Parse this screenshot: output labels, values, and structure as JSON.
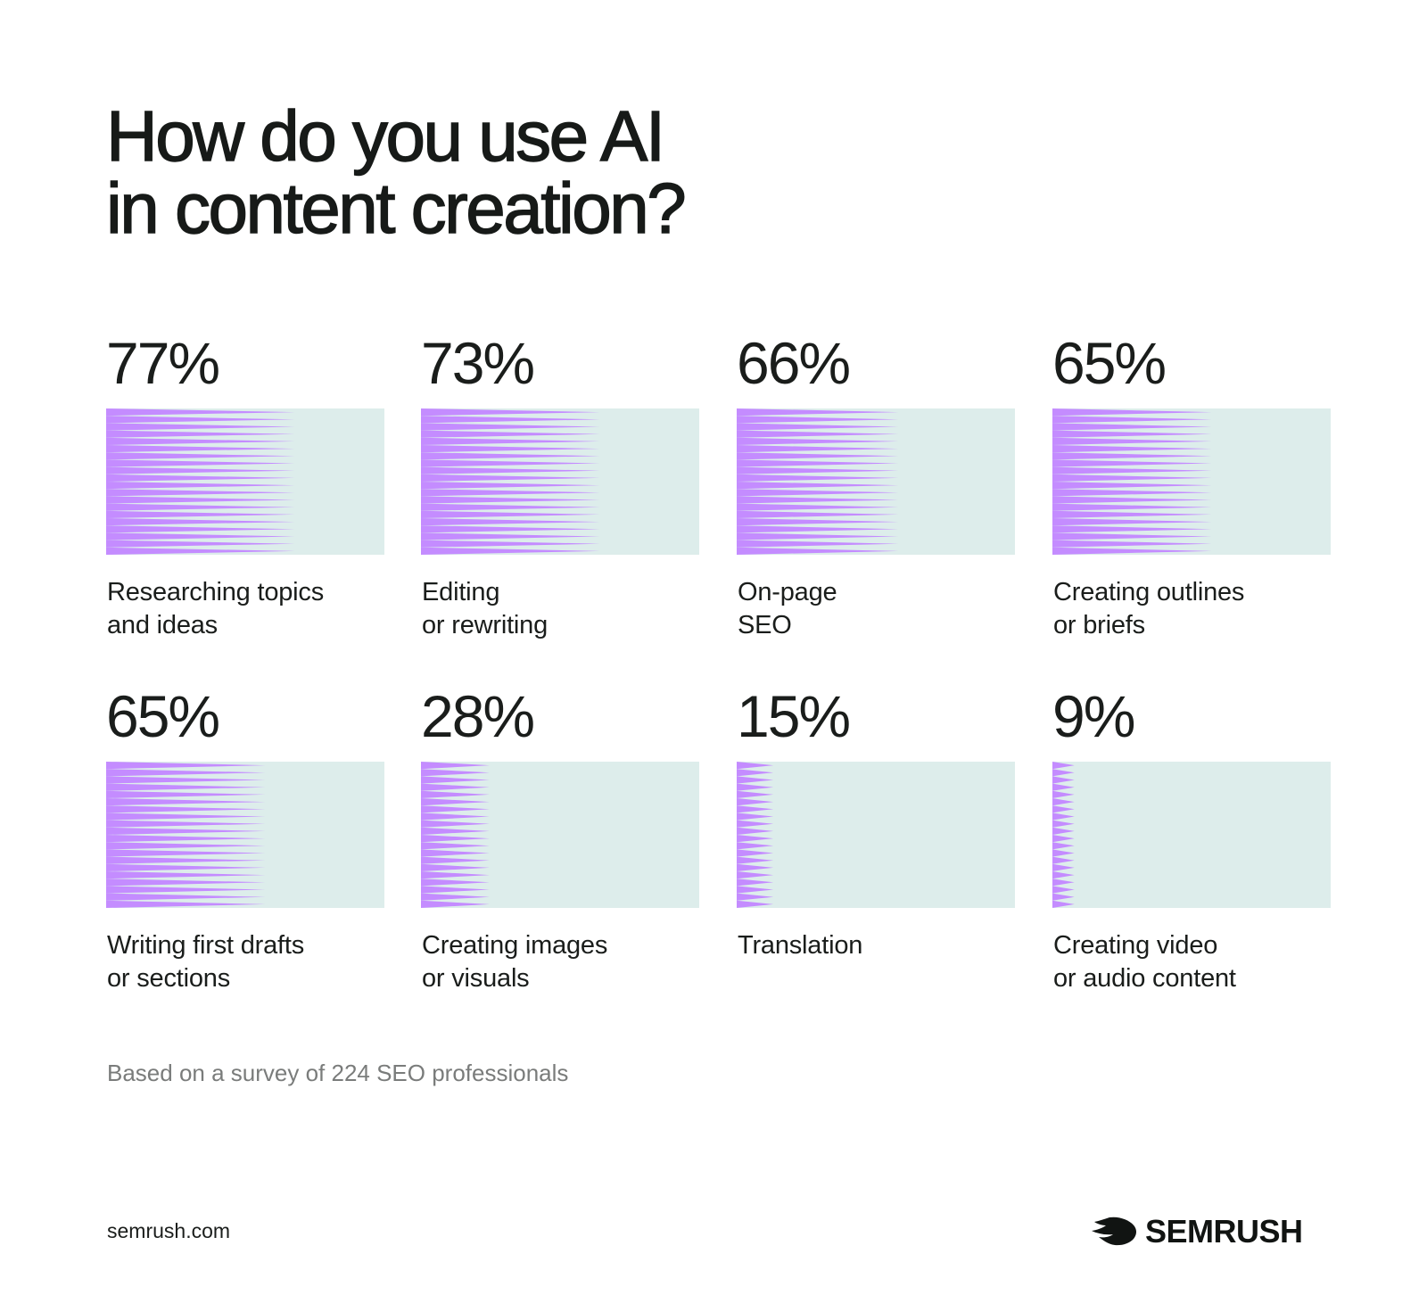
{
  "title_line1": "How do you use AI",
  "title_line2": "in content creation?",
  "chart_data": {
    "type": "bar",
    "title": "How do you use AI in content creation?",
    "unit": "%",
    "xlabel": "",
    "ylabel": "",
    "ylim": [
      0,
      100
    ],
    "grid": false,
    "legend": "none",
    "items": [
      {
        "value": 77,
        "value_label": "77%",
        "label_lines": [
          "Researching topics",
          "and ideas"
        ]
      },
      {
        "value": 73,
        "value_label": "73%",
        "label_lines": [
          "Editing",
          "or rewriting"
        ]
      },
      {
        "value": 66,
        "value_label": "66%",
        "label_lines": [
          "On-page",
          "SEO"
        ]
      },
      {
        "value": 65,
        "value_label": "65%",
        "label_lines": [
          "Creating outlines",
          "or briefs"
        ]
      },
      {
        "value": 65,
        "value_label": "65%",
        "label_lines": [
          "Writing first drafts",
          "or sections"
        ]
      },
      {
        "value": 28,
        "value_label": "28%",
        "label_lines": [
          "Creating images",
          "or visuals"
        ]
      },
      {
        "value": 15,
        "value_label": "15%",
        "label_lines": [
          "Translation"
        ]
      },
      {
        "value": 9,
        "value_label": "9%",
        "label_lines": [
          "Creating video",
          "or audio content"
        ]
      }
    ]
  },
  "footnote": "Based on a survey of 224 SEO professionals",
  "site": "semrush.com",
  "brand": "SEMRUSH",
  "colors": {
    "bar_fill": "#c48cff",
    "bar_track": "#ddedeb",
    "text": "#1a1d1b",
    "note": "#7a7c7b"
  }
}
